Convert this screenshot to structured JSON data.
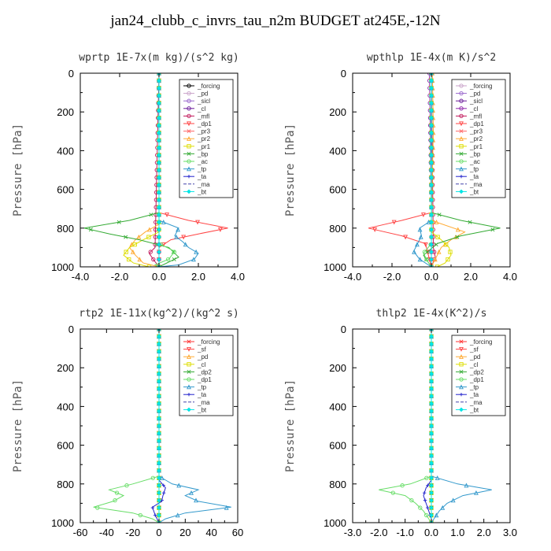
{
  "title": "jan24_clubb_c_invrs_tau_n2m  BUDGET at245E,-12N",
  "chart_data": [
    {
      "type": "line",
      "title": "wprtp   1E-7x(m kg)/(s^2 kg)",
      "ylabel": "Pressure [hPa]",
      "xlim": [
        -4.0,
        4.0
      ],
      "ylim": [
        1000,
        0
      ],
      "xticks": [
        -4.0,
        -2.0,
        0.0,
        2.0,
        4.0
      ],
      "xtick_labels": [
        "-4.0",
        "-2.0",
        "0.0",
        "2.0",
        "4.0"
      ],
      "yticks": [
        0,
        200,
        400,
        600,
        800,
        1000
      ],
      "legend_position": "top-right",
      "grid": false,
      "series": [
        {
          "name": "_forcing",
          "color": "#000000",
          "marker": "o",
          "pressure": [
            0,
            1000
          ],
          "values": [
            0,
            0
          ]
        },
        {
          "name": "_pd",
          "color": "#c8a2c8",
          "marker": "o",
          "pressure": [
            0,
            1000
          ],
          "values": [
            0,
            0
          ]
        },
        {
          "name": "_sicl",
          "color": "#9966cc",
          "marker": "o",
          "pressure": [
            0,
            1000
          ],
          "values": [
            0,
            0
          ]
        },
        {
          "name": "_cl",
          "color": "#6a1b9a",
          "marker": "o",
          "pressure": [
            0,
            1000
          ],
          "values": [
            0,
            0
          ]
        },
        {
          "name": "_mfl",
          "color": "#c2185b",
          "marker": "o",
          "pressure": [
            0,
            900,
            930,
            960,
            1000
          ],
          "values": [
            0,
            -0.2,
            -0.5,
            -0.3,
            0
          ]
        },
        {
          "name": "_dp1",
          "color": "#ff4444",
          "marker": "v",
          "pressure": [
            0,
            720,
            760,
            800,
            830,
            860,
            900,
            1000
          ],
          "values": [
            0,
            0,
            1.5,
            3.5,
            2.0,
            0.6,
            0,
            0
          ]
        },
        {
          "name": "_pr3",
          "color": "#ff6666",
          "marker": "x",
          "pressure": [
            0,
            1000
          ],
          "values": [
            0,
            0
          ]
        },
        {
          "name": "_pr2",
          "color": "#ffaa33",
          "marker": "^",
          "pressure": [
            0,
            780,
            820,
            860,
            900,
            940,
            980,
            1000
          ],
          "values": [
            0,
            0,
            -0.7,
            -1.2,
            -1.5,
            -1.2,
            -0.8,
            0
          ]
        },
        {
          "name": "_pr1",
          "color": "#dddd00",
          "marker": "s",
          "pressure": [
            0,
            820,
            860,
            900,
            940,
            980,
            1000
          ],
          "values": [
            0,
            0,
            -0.8,
            -1.5,
            -1.8,
            -1.3,
            -0.5
          ]
        },
        {
          "name": "_bp",
          "color": "#33aa33",
          "marker": "x",
          "pressure": [
            0,
            720,
            760,
            800,
            830,
            860,
            900,
            950,
            1000
          ],
          "values": [
            0,
            0,
            -1.5,
            -3.8,
            -2.5,
            -1.0,
            0.5,
            1.0,
            0
          ]
        },
        {
          "name": "_ac",
          "color": "#66dd66",
          "marker": "o",
          "pressure": [
            0,
            880,
            920,
            960,
            990,
            1000
          ],
          "values": [
            0,
            0,
            0.8,
            0.5,
            -0.2,
            0
          ]
        },
        {
          "name": "_tp",
          "color": "#3399cc",
          "marker": "^",
          "pressure": [
            0,
            760,
            800,
            840,
            870,
            900,
            930,
            960,
            990,
            1000
          ],
          "values": [
            0,
            0,
            1.0,
            0.8,
            1.2,
            1.5,
            2.0,
            1.8,
            1.0,
            0
          ]
        },
        {
          "name": "_ta",
          "color": "#2222cc",
          "marker": "+",
          "pressure": [
            0,
            1000
          ],
          "values": [
            0,
            0
          ]
        },
        {
          "name": "_ma",
          "color": "#4444aa",
          "marker": "",
          "pressure": [
            0,
            1000
          ],
          "values": [
            0,
            0
          ]
        },
        {
          "name": "_bt",
          "color": "#00e5e5",
          "marker": "D",
          "pressure": [
            0,
            1000
          ],
          "values": [
            0,
            0
          ]
        }
      ]
    },
    {
      "type": "line",
      "title": "wpthlp   1E-4x(m K)/s^2",
      "ylabel": "Pressure [hPa]",
      "xlim": [
        -4.0,
        4.0
      ],
      "ylim": [
        1000,
        0
      ],
      "xticks": [
        -4.0,
        -2.0,
        0.0,
        2.0,
        4.0
      ],
      "xtick_labels": [
        "-4.0",
        "-2.0",
        "0.0",
        "2.0",
        "4.0"
      ],
      "yticks": [
        0,
        200,
        400,
        600,
        800,
        1000
      ],
      "legend_position": "top-right",
      "grid": false,
      "series": [
        {
          "name": "_forcing",
          "color": "#c8a2c8",
          "marker": "o",
          "pressure": [
            0,
            1000
          ],
          "values": [
            0,
            0
          ]
        },
        {
          "name": "_pd",
          "color": "#9966cc",
          "marker": "o",
          "pressure": [
            0,
            1000
          ],
          "values": [
            0,
            0
          ]
        },
        {
          "name": "_sicl",
          "color": "#6a1b9a",
          "marker": "o",
          "pressure": [
            0,
            1000
          ],
          "values": [
            0,
            0
          ]
        },
        {
          "name": "_cl",
          "color": "#8e24aa",
          "marker": "o",
          "pressure": [
            0,
            300,
            700,
            1000
          ],
          "values": [
            -0.1,
            -0.05,
            0,
            0
          ]
        },
        {
          "name": "_mfl",
          "color": "#c2185b",
          "marker": "o",
          "pressure": [
            0,
            900,
            950,
            1000
          ],
          "values": [
            0,
            0.1,
            0.2,
            0
          ]
        },
        {
          "name": "_dp1",
          "color": "#ff4444",
          "marker": "v",
          "pressure": [
            0,
            720,
            760,
            800,
            840,
            880,
            1000
          ],
          "values": [
            0,
            0,
            -1.5,
            -3.2,
            -1.5,
            -0.3,
            0
          ]
        },
        {
          "name": "_pr3",
          "color": "#ff6666",
          "marker": "x",
          "pressure": [
            0,
            1000
          ],
          "values": [
            0,
            0
          ]
        },
        {
          "name": "_pr2",
          "color": "#ffaa33",
          "marker": "^",
          "pressure": [
            0,
            300,
            760,
            820,
            860,
            900,
            1000
          ],
          "values": [
            0.05,
            0.1,
            0,
            1.7,
            1.0,
            0.5,
            0
          ]
        },
        {
          "name": "_pr1",
          "color": "#dddd00",
          "marker": "s",
          "pressure": [
            0,
            820,
            860,
            900,
            940,
            980,
            1000
          ],
          "values": [
            0,
            0,
            0.5,
            0.9,
            1.0,
            0.7,
            0.3
          ]
        },
        {
          "name": "_bp",
          "color": "#33aa33",
          "marker": "x",
          "pressure": [
            0,
            720,
            760,
            800,
            840,
            880,
            940,
            1000
          ],
          "values": [
            0,
            0,
            1.5,
            3.5,
            1.5,
            0.3,
            -0.4,
            0
          ]
        },
        {
          "name": "_ac",
          "color": "#66dd66",
          "marker": "o",
          "pressure": [
            0,
            880,
            930,
            970,
            1000
          ],
          "values": [
            0,
            0,
            -0.4,
            -0.2,
            0
          ]
        },
        {
          "name": "_tp",
          "color": "#3399cc",
          "marker": "^",
          "pressure": [
            0,
            760,
            800,
            840,
            880,
            920,
            960,
            1000
          ],
          "values": [
            0,
            0,
            -0.6,
            -0.5,
            -0.7,
            -0.9,
            -0.6,
            0
          ]
        },
        {
          "name": "_ta",
          "color": "#2222cc",
          "marker": "+",
          "pressure": [
            0,
            1000
          ],
          "values": [
            0,
            0
          ]
        },
        {
          "name": "_ma",
          "color": "#4444aa",
          "marker": "",
          "pressure": [
            0,
            1000
          ],
          "values": [
            0,
            0
          ]
        },
        {
          "name": "_bt",
          "color": "#00e5e5",
          "marker": "D",
          "pressure": [
            0,
            1000
          ],
          "values": [
            0,
            0
          ]
        }
      ]
    },
    {
      "type": "line",
      "title": "rtp2   1E-11x(kg^2)/(kg^2 s)",
      "ylabel": "Pressure [hPa]",
      "xlim": [
        -60,
        60
      ],
      "ylim": [
        1000,
        0
      ],
      "xticks": [
        -60,
        -40,
        -20,
        0,
        20,
        40,
        60
      ],
      "xtick_labels": [
        "-60",
        "-40",
        "-20",
        "0",
        "20",
        "40",
        "60"
      ],
      "yticks": [
        0,
        200,
        400,
        600,
        800,
        1000
      ],
      "legend_position": "top-right",
      "grid": false,
      "series": [
        {
          "name": "_forcing",
          "color": "#ff3333",
          "marker": "x",
          "pressure": [
            0,
            1000
          ],
          "values": [
            0,
            0
          ]
        },
        {
          "name": "_sf",
          "color": "#ff4444",
          "marker": "v",
          "pressure": [
            0,
            1000
          ],
          "values": [
            0,
            0
          ]
        },
        {
          "name": "_pd",
          "color": "#ffaa33",
          "marker": "^",
          "pressure": [
            0,
            1000
          ],
          "values": [
            0,
            0
          ]
        },
        {
          "name": "_cl",
          "color": "#dddd00",
          "marker": "s",
          "pressure": [
            0,
            1000
          ],
          "values": [
            0,
            0
          ]
        },
        {
          "name": "_dp2",
          "color": "#33aa33",
          "marker": "x",
          "pressure": [
            0,
            1000
          ],
          "values": [
            0,
            0
          ]
        },
        {
          "name": "_dp1",
          "color": "#66dd66",
          "marker": "o",
          "pressure": [
            0,
            760,
            800,
            830,
            860,
            890,
            920,
            950,
            980,
            1000
          ],
          "values": [
            0,
            0,
            -20,
            -38,
            -27,
            -35,
            -50,
            -20,
            -5,
            0
          ]
        },
        {
          "name": "_tp",
          "color": "#3399cc",
          "marker": "^",
          "pressure": [
            0,
            760,
            800,
            830,
            860,
            890,
            920,
            950,
            980,
            1000
          ],
          "values": [
            0,
            0,
            10,
            30,
            20,
            30,
            55,
            20,
            5,
            0
          ]
        },
        {
          "name": "_ta",
          "color": "#2222cc",
          "marker": "+",
          "pressure": [
            0,
            780,
            820,
            860,
            890,
            920,
            960,
            1000
          ],
          "values": [
            0,
            0,
            5,
            3,
            2,
            -5,
            -3,
            0
          ]
        },
        {
          "name": "_ma",
          "color": "#4444aa",
          "marker": "",
          "pressure": [
            0,
            1000
          ],
          "values": [
            0,
            0
          ]
        },
        {
          "name": "_bt",
          "color": "#00e5e5",
          "marker": "D",
          "pressure": [
            0,
            1000
          ],
          "values": [
            0,
            0
          ]
        }
      ]
    },
    {
      "type": "line",
      "title": "thlp2   1E-4x(K^2)/s",
      "ylabel": "Pressure [hPa]",
      "xlim": [
        -3.0,
        3.0
      ],
      "ylim": [
        1000,
        0
      ],
      "xticks": [
        -3.0,
        -2.0,
        -1.0,
        0.0,
        1.0,
        2.0,
        3.0
      ],
      "xtick_labels": [
        "-3.0",
        "-2.0",
        "-1.0",
        "0.0",
        "1.0",
        "2.0",
        "3.0"
      ],
      "yticks": [
        0,
        200,
        400,
        600,
        800,
        1000
      ],
      "legend_position": "top-right",
      "grid": false,
      "series": [
        {
          "name": "_forcing",
          "color": "#ff3333",
          "marker": "x",
          "pressure": [
            0,
            1000
          ],
          "values": [
            0,
            0
          ]
        },
        {
          "name": "_sf",
          "color": "#ff4444",
          "marker": "v",
          "pressure": [
            0,
            1000
          ],
          "values": [
            0,
            0
          ]
        },
        {
          "name": "_pd",
          "color": "#ffaa33",
          "marker": "^",
          "pressure": [
            0,
            1000
          ],
          "values": [
            0,
            0
          ]
        },
        {
          "name": "_cl",
          "color": "#dddd00",
          "marker": "s",
          "pressure": [
            0,
            1000
          ],
          "values": [
            0,
            0
          ]
        },
        {
          "name": "_dp2",
          "color": "#33aa33",
          "marker": "x",
          "pressure": [
            0,
            1000
          ],
          "values": [
            0,
            0
          ]
        },
        {
          "name": "_dp1",
          "color": "#66dd66",
          "marker": "o",
          "pressure": [
            0,
            760,
            800,
            830,
            860,
            900,
            940,
            980,
            1000
          ],
          "values": [
            0,
            0,
            -0.8,
            -2.0,
            -1.0,
            -0.6,
            -0.3,
            -0.1,
            0
          ]
        },
        {
          "name": "_tp",
          "color": "#3399cc",
          "marker": "^",
          "pressure": [
            0,
            760,
            800,
            830,
            860,
            900,
            940,
            980,
            1000
          ],
          "values": [
            0,
            0,
            1.0,
            2.3,
            1.2,
            0.6,
            0.3,
            0.1,
            0
          ]
        },
        {
          "name": "_ta",
          "color": "#2222cc",
          "marker": "+",
          "pressure": [
            0,
            780,
            820,
            860,
            900,
            940,
            980,
            1000
          ],
          "values": [
            0,
            0,
            -0.2,
            -0.3,
            -0.2,
            -0.1,
            0,
            0
          ]
        },
        {
          "name": "_ma",
          "color": "#4444aa",
          "marker": "",
          "pressure": [
            0,
            1000
          ],
          "values": [
            0,
            0
          ]
        },
        {
          "name": "_bt",
          "color": "#00e5e5",
          "marker": "D",
          "pressure": [
            0,
            1000
          ],
          "values": [
            0,
            0
          ]
        }
      ]
    }
  ]
}
